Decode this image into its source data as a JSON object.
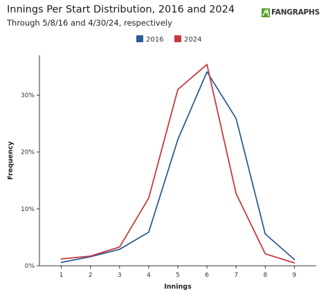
{
  "header": {
    "title": "Innings Per Start Distribution, 2016 and 2024",
    "subtitle": "Through 5/8/16 and 4/30/24, respectively",
    "brand_text": "FANGRAPHS",
    "brand_color": "#5aa02c"
  },
  "chart_data": {
    "type": "line",
    "title": "Innings Per Start Distribution, 2016 and 2024",
    "subtitle": "Through 5/8/16 and 4/30/24, respectively",
    "xlabel": "Innings",
    "ylabel": "Frequency",
    "x": [
      1,
      2,
      3,
      4,
      5,
      6,
      7,
      8,
      9
    ],
    "x_tick_labels": [
      "1",
      "2",
      "3",
      "4",
      "5",
      "6",
      "7",
      "8",
      "9"
    ],
    "xlim": [
      0.25,
      9.75
    ],
    "ylim": [
      0,
      0.37
    ],
    "y_ticks": [
      0,
      0.1,
      0.2,
      0.3
    ],
    "y_tick_labels": [
      "0%",
      "10%",
      "20%",
      "30%"
    ],
    "grid": false,
    "legend_position": "top-center",
    "series": [
      {
        "name": "2016",
        "color": "#2b5c92",
        "values": [
          0.006,
          0.016,
          0.029,
          0.059,
          0.222,
          0.341,
          0.259,
          0.056,
          0.011
        ]
      },
      {
        "name": "2024",
        "color": "#c8373d",
        "values": [
          0.012,
          0.017,
          0.033,
          0.119,
          0.31,
          0.354,
          0.127,
          0.021,
          0.005
        ]
      }
    ]
  }
}
